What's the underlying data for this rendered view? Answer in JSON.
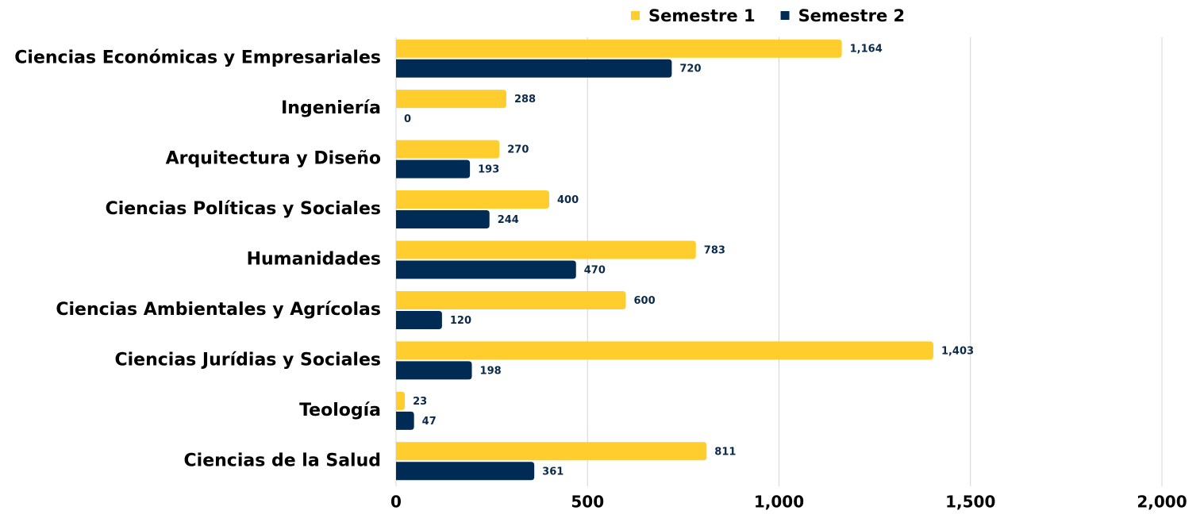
{
  "chart_data": {
    "type": "barh",
    "categories": [
      "Ciencias Económicas y Empresariales",
      "Ingeniería",
      "Arquitectura y Diseño",
      "Ciencias Políticas y Sociales",
      "Humanidades",
      "Ciencias Ambientales y Agrícolas",
      "Ciencias Jurídias y Sociales",
      "Teología",
      "Ciencias de la Salud"
    ],
    "series": [
      {
        "name": "Semestre 1",
        "color": "#ffce2e",
        "values": [
          1164,
          288,
          270,
          400,
          783,
          600,
          1403,
          23,
          811
        ],
        "value_labels": [
          "1,164",
          "288",
          "270",
          "400",
          "783",
          "600",
          "1,403",
          "23",
          "811"
        ]
      },
      {
        "name": "Semestre 2",
        "color": "#002b54",
        "values": [
          720,
          0,
          193,
          244,
          470,
          120,
          198,
          47,
          361
        ]
      }
    ],
    "xlim": [
      0,
      2000
    ],
    "xticks": [
      0,
      500,
      {
        "value": 1000,
        "label": "1,000"
      },
      {
        "value": 1500,
        "label": "1,500"
      },
      {
        "value": 2000,
        "label": "2,000"
      }
    ],
    "grid": true,
    "legend": "top"
  }
}
